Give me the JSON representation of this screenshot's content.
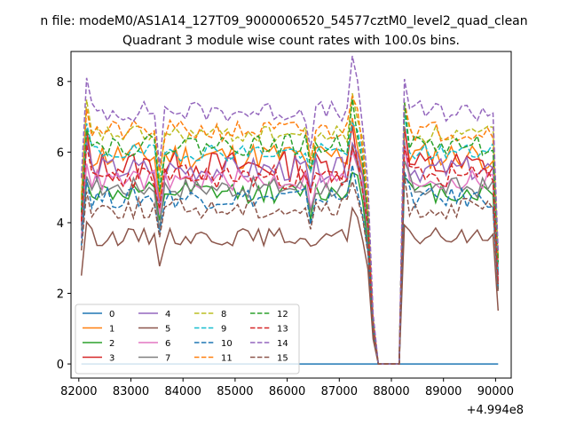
{
  "suptitle": "n file: modeM0/AS1A14_127T09_9000006520_54577cztM0_level2_quad_clean",
  "chart_data": {
    "type": "line",
    "title": "Quadrant 3 module wise count rates with 100.0s bins.",
    "xlabel": "",
    "ylabel": "",
    "x_offset_label": "+4.994e8",
    "xlim": [
      81850,
      90300
    ],
    "ylim": [
      -0.4,
      8.85
    ],
    "xticks": [
      82000,
      83000,
      84000,
      85000,
      86000,
      87000,
      88000,
      89000,
      90000
    ],
    "xtick_labels": [
      "82000",
      "83000",
      "84000",
      "85000",
      "86000",
      "87000",
      "88000",
      "89000",
      "90000"
    ],
    "yticks": [
      0,
      2,
      4,
      6,
      8
    ],
    "ytick_labels": [
      "0",
      "2",
      "4",
      "6",
      "8"
    ],
    "x_start": 82050,
    "x_step": 100,
    "gap": [
      87750,
      88150
    ],
    "legend_position": "lower-left",
    "legend_columns": 4,
    "series": [
      {
        "name": "0",
        "color": "#1f77b4",
        "dash": "solid",
        "zero": true
      },
      {
        "name": "1",
        "color": "#ff7f0e",
        "dash": "solid",
        "level": 5.9,
        "amp": 0.4,
        "seed": 11
      },
      {
        "name": "2",
        "color": "#2ca02c",
        "dash": "solid",
        "level": 4.85,
        "amp": 0.3,
        "seed": 12
      },
      {
        "name": "3",
        "color": "#d62728",
        "dash": "solid",
        "level": 5.6,
        "amp": 0.45,
        "seed": 13
      },
      {
        "name": "4",
        "color": "#9467bd",
        "dash": "solid",
        "level": 5.5,
        "amp": 0.35,
        "seed": 14
      },
      {
        "name": "5",
        "color": "#8c564b",
        "dash": "solid",
        "level": 3.6,
        "amp": 0.25,
        "seed": 15
      },
      {
        "name": "6",
        "color": "#e377c2",
        "dash": "solid",
        "level": 5.2,
        "amp": 0.3,
        "seed": 16
      },
      {
        "name": "7",
        "color": "#7f7f7f",
        "dash": "solid",
        "level": 5.0,
        "amp": 0.3,
        "seed": 17
      },
      {
        "name": "8",
        "color": "#bcbd22",
        "dash": "dashed",
        "level": 6.5,
        "amp": 0.25,
        "seed": 18
      },
      {
        "name": "9",
        "color": "#17becf",
        "dash": "dashed",
        "level": 6.0,
        "amp": 0.25,
        "seed": 19
      },
      {
        "name": "10",
        "color": "#1f77b4",
        "dash": "dashed",
        "level": 4.7,
        "amp": 0.3,
        "seed": 20
      },
      {
        "name": "11",
        "color": "#ff7f0e",
        "dash": "dashed",
        "level": 6.6,
        "amp": 0.3,
        "seed": 21
      },
      {
        "name": "12",
        "color": "#2ca02c",
        "dash": "dashed",
        "level": 6.2,
        "amp": 0.3,
        "seed": 22
      },
      {
        "name": "13",
        "color": "#d62728",
        "dash": "dashed",
        "level": 5.3,
        "amp": 0.35,
        "seed": 23
      },
      {
        "name": "14",
        "color": "#9467bd",
        "dash": "dashed",
        "level": 7.15,
        "amp": 0.3,
        "seed": 24
      },
      {
        "name": "15",
        "color": "#8c564b",
        "dash": "dashed",
        "level": 4.4,
        "amp": 0.3,
        "seed": 25
      }
    ]
  }
}
